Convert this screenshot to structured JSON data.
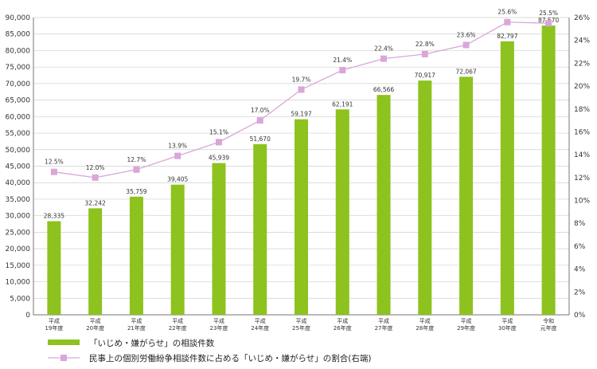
{
  "chart_data": {
    "type": "bar+line",
    "categories": [
      [
        "平成",
        "19年度"
      ],
      [
        "平成",
        "20年度"
      ],
      [
        "平成",
        "21年度"
      ],
      [
        "平成",
        "22年度"
      ],
      [
        "平成",
        "23年度"
      ],
      [
        "平成",
        "24年度"
      ],
      [
        "平成",
        "25年度"
      ],
      [
        "平成",
        "26年度"
      ],
      [
        "平成",
        "27年度"
      ],
      [
        "平成",
        "28年度"
      ],
      [
        "平成",
        "29年度"
      ],
      [
        "平成",
        "30年度"
      ],
      [
        "令和",
        "元年度"
      ]
    ],
    "series": [
      {
        "name": "「いじめ・嫌がらせ」の相談件数",
        "type": "bar",
        "axis": "left",
        "color": "#8dc21f",
        "values": [
          28335,
          32242,
          35759,
          39405,
          45939,
          51670,
          59197,
          62191,
          66566,
          70917,
          72067,
          82797,
          87570
        ],
        "labels": [
          "28,335",
          "32,242",
          "35,759",
          "39,405",
          "45,939",
          "51,670",
          "59,197",
          "62,191",
          "66,566",
          "70,917",
          "72,067",
          "82,797",
          "87,570"
        ]
      },
      {
        "name": "民事上の個別労働紛争相談件数に占める「いじめ・嫌がらせ」の割合(右端)",
        "type": "line",
        "axis": "right",
        "color": "#d9a6d9",
        "values": [
          12.5,
          12.0,
          12.7,
          13.9,
          15.1,
          17.0,
          19.7,
          21.4,
          22.4,
          22.8,
          23.6,
          25.6,
          25.5
        ],
        "labels": [
          "12.5%",
          "12.0%",
          "12.7%",
          "13.9%",
          "15.1%",
          "17.0%",
          "19.7%",
          "21.4%",
          "22.4%",
          "22.8%",
          "23.6%",
          "25.6%",
          "25.5%"
        ]
      }
    ],
    "y_left": {
      "min": 0,
      "max": 90000,
      "step": 5000,
      "ticks": [
        "0",
        "5,000",
        "10,000",
        "15,000",
        "20,000",
        "25,000",
        "30,000",
        "35,000",
        "40,000",
        "45,000",
        "50,000",
        "55,000",
        "60,000",
        "65,000",
        "70,000",
        "75,000",
        "80,000",
        "85,000",
        "90,000"
      ]
    },
    "y_right": {
      "min": 0,
      "max": 26,
      "step": 2,
      "ticks": [
        "0%",
        "2%",
        "4%",
        "6%",
        "8%",
        "10%",
        "12%",
        "14%",
        "16%",
        "18%",
        "20%",
        "22%",
        "24%",
        "26%"
      ]
    },
    "grid": true,
    "legend": "bottom-left"
  }
}
